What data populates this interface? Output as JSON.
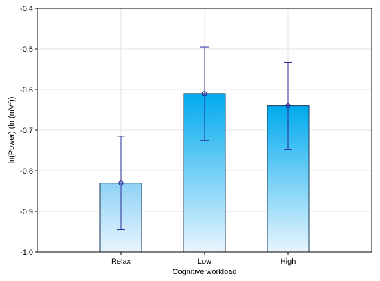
{
  "chart_data": {
    "type": "bar",
    "title": "",
    "xlabel": "Cognitive workload",
    "ylabel_main": "ln(Power) (ln (mV",
    "ylabel_sup": "2",
    "ylabel_end": "))",
    "categories": [
      "Relax",
      "Low",
      "High"
    ],
    "values": [
      -0.83,
      -0.61,
      -0.64
    ],
    "error_upper": [
      -0.715,
      -0.495,
      -0.533
    ],
    "error_lower": [
      -0.945,
      -0.725,
      -0.748
    ],
    "ylim": [
      -1.0,
      -0.4
    ],
    "yticks": [
      -0.4,
      -0.5,
      -0.6,
      -0.7,
      -0.8,
      -0.9,
      -1.0
    ],
    "ytick_labels": [
      "-0.4",
      "-0.5",
      "-0.6",
      "-0.7",
      "-0.8",
      "-0.9",
      "-1.0"
    ],
    "grid": true,
    "colors": {
      "bar_top_low": "#00aaee",
      "bar_top_relax": "#8fd2f5",
      "bar_bottom": "#e8f5fd",
      "bar_stroke": "#1a3a5a",
      "errorbar": "#2a2a9a",
      "marker": "#2a2a9a",
      "grid": "#e3e3e3",
      "axis": "#000000"
    }
  }
}
